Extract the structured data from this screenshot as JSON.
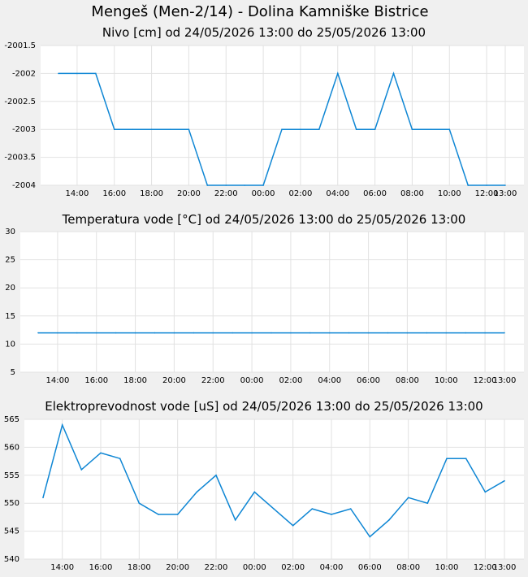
{
  "title": "Mengeš (Men-2/14) - Dolina Kamniške Bistrice",
  "chart_data": [
    {
      "type": "line",
      "title": "Nivo [cm] od 24/05/2026 13:00 do 25/05/2026 13:00",
      "x": [
        "13:00",
        "14:00",
        "15:00",
        "16:00",
        "17:00",
        "18:00",
        "19:00",
        "20:00",
        "21:00",
        "22:00",
        "23:00",
        "00:00",
        "01:00",
        "02:00",
        "03:00",
        "04:00",
        "05:00",
        "06:00",
        "07:00",
        "08:00",
        "09:00",
        "10:00",
        "11:00",
        "12:00",
        "13:00"
      ],
      "values": [
        -2002,
        -2002,
        -2002,
        -2003,
        -2003,
        -2003,
        -2003,
        -2003,
        -2004,
        -2004,
        -2004,
        -2004,
        -2003,
        -2003,
        -2003,
        -2002,
        -2003,
        -2003,
        -2002,
        -2003,
        -2003,
        -2003,
        -2004,
        -2004,
        -2004
      ],
      "ylim": [
        -2004,
        -2001.5
      ],
      "yticks": [
        "-2001.5",
        "-2002",
        "-2002.5",
        "-2003",
        "-2003.5",
        "-2004"
      ],
      "xticks": [
        "14:00",
        "16:00",
        "18:00",
        "20:00",
        "22:00",
        "00:00",
        "02:00",
        "04:00",
        "06:00",
        "08:00",
        "10:00",
        "12:00",
        "13:00"
      ],
      "grid": true
    },
    {
      "type": "line",
      "title": "Temperatura vode [°C] od 24/05/2026 13:00 do 25/05/2026 13:00",
      "x": [
        "13:00",
        "14:00",
        "15:00",
        "16:00",
        "17:00",
        "18:00",
        "19:00",
        "20:00",
        "21:00",
        "22:00",
        "23:00",
        "00:00",
        "01:00",
        "02:00",
        "03:00",
        "04:00",
        "05:00",
        "06:00",
        "07:00",
        "08:00",
        "09:00",
        "10:00",
        "11:00",
        "12:00",
        "13:00"
      ],
      "values": [
        12,
        12,
        12,
        12,
        12,
        12,
        12,
        12,
        12,
        12,
        12,
        12,
        12,
        12,
        12,
        12,
        12,
        12,
        12,
        12,
        12,
        12,
        12,
        12,
        12
      ],
      "ylim": [
        5,
        30
      ],
      "yticks": [
        "30",
        "25",
        "20",
        "15",
        "10",
        "5"
      ],
      "xticks": [
        "14:00",
        "16:00",
        "18:00",
        "20:00",
        "22:00",
        "00:00",
        "02:00",
        "04:00",
        "06:00",
        "08:00",
        "10:00",
        "12:00",
        "13:00"
      ],
      "grid": true
    },
    {
      "type": "line",
      "title": "Elektroprevodnost vode [uS] od 24/05/2026 13:00 do 25/05/2026 13:00",
      "x": [
        "13:00",
        "14:00",
        "15:00",
        "16:00",
        "17:00",
        "18:00",
        "19:00",
        "20:00",
        "21:00",
        "22:00",
        "23:00",
        "00:00",
        "01:00",
        "02:00",
        "03:00",
        "04:00",
        "05:00",
        "06:00",
        "07:00",
        "08:00",
        "09:00",
        "10:00",
        "11:00",
        "12:00",
        "13:00"
      ],
      "values": [
        551,
        564,
        556,
        559,
        558,
        550,
        548,
        548,
        552,
        555,
        547,
        552,
        549,
        546,
        549,
        548,
        549,
        544,
        547,
        551,
        550,
        558,
        558,
        552,
        554
      ],
      "ylim": [
        540,
        565
      ],
      "yticks": [
        "565",
        "560",
        "555",
        "550",
        "545",
        "540"
      ],
      "xticks": [
        "14:00",
        "16:00",
        "18:00",
        "20:00",
        "22:00",
        "00:00",
        "02:00",
        "04:00",
        "06:00",
        "08:00",
        "10:00",
        "12:00",
        "13:00"
      ],
      "grid": true
    }
  ]
}
